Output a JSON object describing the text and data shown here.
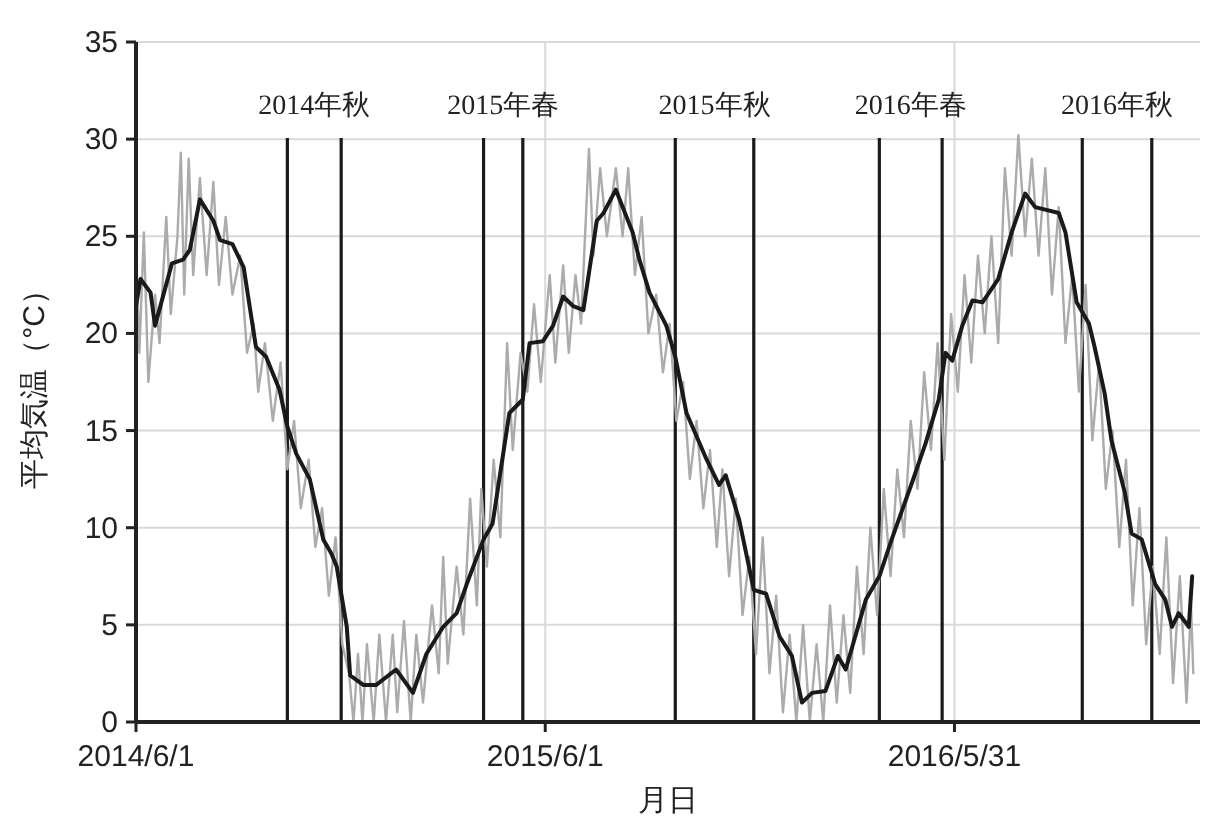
{
  "chart_data": {
    "type": "line",
    "xlabel": "月日",
    "ylabel": "平均気温（°C）",
    "xlim": [
      "2014-06-01",
      "2017-01-05"
    ],
    "xticks": [
      {
        "value": "2014-06-01",
        "label": "2014/6/1"
      },
      {
        "value": "2015-06-01",
        "label": "2015/6/1"
      },
      {
        "value": "2016-05-31",
        "label": "2016/5/31"
      }
    ],
    "ylim": [
      0,
      35
    ],
    "yticks": [
      0,
      5,
      10,
      15,
      20,
      25,
      30,
      35
    ],
    "grid": true,
    "marker": "none",
    "line_style": "solid",
    "ref_lines": [
      {
        "axis": "x",
        "value": "2014-10-14",
        "label": "2014年秋",
        "color": "#1a1a1a"
      },
      {
        "axis": "x",
        "value": "2014-12-01",
        "color": "#1a1a1a"
      },
      {
        "axis": "x",
        "value": "2015-04-07",
        "label": "2015年春",
        "color": "#1a1a1a"
      },
      {
        "axis": "x",
        "value": "2015-05-12",
        "color": "#1a1a1a"
      },
      {
        "axis": "x",
        "value": "2015-09-25",
        "label": "2015年秋",
        "color": "#1a1a1a"
      },
      {
        "axis": "x",
        "value": "2015-12-04",
        "color": "#1a1a1a"
      },
      {
        "axis": "x",
        "value": "2016-03-25",
        "label": "2016年春",
        "color": "#1a1a1a"
      },
      {
        "axis": "x",
        "value": "2016-05-20",
        "color": "#1a1a1a"
      },
      {
        "axis": "x",
        "value": "2016-09-22",
        "label": "2016年秋",
        "color": "#1a1a1a"
      },
      {
        "axis": "x",
        "value": "2016-11-23",
        "color": "#1a1a1a"
      }
    ],
    "series": [
      {
        "color": "#ababab",
        "x": [
          "2014-06-01",
          "2014-06-04",
          "2014-06-08",
          "2014-06-12",
          "2014-06-18",
          "2014-06-22",
          "2014-06-28",
          "2014-07-02",
          "2014-07-08",
          "2014-07-11",
          "2014-07-14",
          "2014-07-18",
          "2014-07-22",
          "2014-07-28",
          "2014-08-03",
          "2014-08-09",
          "2014-08-14",
          "2014-08-20",
          "2014-08-26",
          "2014-09-02",
          "2014-09-08",
          "2014-09-14",
          "2014-09-18",
          "2014-09-24",
          "2014-10-01",
          "2014-10-08",
          "2014-10-14",
          "2014-10-20",
          "2014-10-26",
          "2014-11-02",
          "2014-11-08",
          "2014-11-14",
          "2014-11-20",
          "2014-11-26",
          "2014-12-02",
          "2014-12-08",
          "2014-12-12",
          "2014-12-16",
          "2014-12-20",
          "2014-12-24",
          "2014-12-30",
          "2015-01-04",
          "2015-01-10",
          "2015-01-16",
          "2015-01-20",
          "2015-01-26",
          "2015-02-01",
          "2015-02-06",
          "2015-02-12",
          "2015-02-20",
          "2015-02-26",
          "2015-03-02",
          "2015-03-06",
          "2015-03-14",
          "2015-03-20",
          "2015-03-26",
          "2015-04-01",
          "2015-04-05",
          "2015-04-10",
          "2015-04-16",
          "2015-04-22",
          "2015-04-28",
          "2015-05-03",
          "2015-05-10",
          "2015-05-16",
          "2015-05-22",
          "2015-05-28",
          "2015-06-05",
          "2015-06-10",
          "2015-06-17",
          "2015-06-22",
          "2015-06-28",
          "2015-07-03",
          "2015-07-10",
          "2015-07-14",
          "2015-07-20",
          "2015-07-26",
          "2015-08-03",
          "2015-08-09",
          "2015-08-14",
          "2015-08-20",
          "2015-08-26",
          "2015-09-01",
          "2015-09-08",
          "2015-09-14",
          "2015-09-20",
          "2015-09-26",
          "2015-10-02",
          "2015-10-08",
          "2015-10-14",
          "2015-10-20",
          "2015-10-26",
          "2015-11-01",
          "2015-11-06",
          "2015-11-12",
          "2015-11-18",
          "2015-11-24",
          "2015-11-30",
          "2015-12-06",
          "2015-12-12",
          "2015-12-18",
          "2015-12-24",
          "2015-12-30",
          "2016-01-05",
          "2016-01-11",
          "2016-01-17",
          "2016-01-23",
          "2016-01-29",
          "2016-02-04",
          "2016-02-10",
          "2016-02-16",
          "2016-02-22",
          "2016-02-28",
          "2016-03-05",
          "2016-03-11",
          "2016-03-17",
          "2016-03-23",
          "2016-03-29",
          "2016-04-04",
          "2016-04-10",
          "2016-04-16",
          "2016-04-22",
          "2016-04-28",
          "2016-05-04",
          "2016-05-10",
          "2016-05-16",
          "2016-05-22",
          "2016-05-28",
          "2016-06-03",
          "2016-06-09",
          "2016-06-15",
          "2016-06-21",
          "2016-06-27",
          "2016-07-03",
          "2016-07-09",
          "2016-07-15",
          "2016-07-21",
          "2016-07-27",
          "2016-08-02",
          "2016-08-08",
          "2016-08-14",
          "2016-08-20",
          "2016-08-26",
          "2016-09-01",
          "2016-09-07",
          "2016-09-13",
          "2016-09-19",
          "2016-09-25",
          "2016-10-01",
          "2016-10-07",
          "2016-10-13",
          "2016-10-19",
          "2016-10-25",
          "2016-10-31",
          "2016-11-06",
          "2016-11-12",
          "2016-11-18",
          "2016-11-24",
          "2016-11-30",
          "2016-12-06",
          "2016-12-12",
          "2016-12-18",
          "2016-12-24",
          "2016-12-28",
          "2016-12-30"
        ],
        "values": [
          24.5,
          19.0,
          25.2,
          17.5,
          22,
          19.5,
          26,
          21,
          25,
          29.3,
          22,
          29,
          23,
          28,
          23,
          27.8,
          22.5,
          26,
          22,
          24,
          19,
          20.5,
          17,
          19.5,
          15.5,
          18.5,
          13,
          15.5,
          11,
          13.5,
          9,
          11,
          6.5,
          9.5,
          4,
          2.5,
          0,
          3.5,
          0,
          4,
          0,
          4.5,
          0,
          4.5,
          0.5,
          5.2,
          0,
          4.5,
          1,
          6,
          2.5,
          8.5,
          3,
          8,
          4.5,
          11.5,
          6,
          12,
          8,
          13.5,
          9.5,
          19.5,
          14,
          19,
          17,
          21.5,
          17.5,
          23,
          18.5,
          23.5,
          19,
          23,
          20.5,
          29.5,
          24,
          28.5,
          25,
          28.5,
          25,
          28.5,
          23,
          26,
          20,
          22,
          18,
          20.5,
          15.5,
          17.5,
          12.5,
          15.5,
          11,
          14,
          9,
          13,
          7.5,
          11.5,
          5.5,
          8.5,
          3.5,
          9.5,
          2.5,
          6.5,
          0.5,
          4.5,
          0,
          5,
          0,
          4,
          0,
          6,
          1,
          5.5,
          1.5,
          8,
          3.5,
          10,
          5.5,
          12,
          7.5,
          13,
          9.5,
          15.5,
          12,
          18,
          14,
          19.5,
          13.5,
          21,
          17,
          23,
          18.5,
          24,
          20,
          25,
          19.5,
          28.5,
          24,
          30.2,
          25,
          29,
          24,
          28.5,
          22,
          26.5,
          19.5,
          23,
          17,
          22.5,
          14.5,
          18.5,
          12,
          15,
          9,
          13.5,
          6,
          11,
          4,
          8,
          3.5,
          9.5,
          2,
          7.5,
          1,
          6,
          2.5
        ]
      },
      {
        "color": "#1a1a1a",
        "x": [
          "2014-06-01",
          "2014-06-05",
          "2014-06-14",
          "2014-06-18",
          "2014-06-26",
          "2014-07-03",
          "2014-07-13",
          "2014-07-19",
          "2014-07-28",
          "2014-08-09",
          "2014-08-15",
          "2014-08-26",
          "2014-09-05",
          "2014-09-16",
          "2014-09-25",
          "2014-10-07",
          "2014-10-14",
          "2014-10-22",
          "2014-11-03",
          "2014-11-15",
          "2014-11-22",
          "2014-11-27",
          "2014-12-06",
          "2014-12-09",
          "2014-12-21",
          "2015-01-01",
          "2015-01-19",
          "2015-02-03",
          "2015-02-15",
          "2015-03-02",
          "2015-03-14",
          "2015-03-23",
          "2015-04-07",
          "2015-04-15",
          "2015-04-30",
          "2015-05-12",
          "2015-05-18",
          "2015-05-30",
          "2015-06-08",
          "2015-06-17",
          "2015-06-26",
          "2015-07-05",
          "2015-07-17",
          "2015-07-23",
          "2015-08-03",
          "2015-08-18",
          "2015-08-24",
          "2015-09-02",
          "2015-09-17",
          "2015-09-25",
          "2015-10-05",
          "2015-10-23",
          "2015-11-03",
          "2015-11-09",
          "2015-11-21",
          "2015-12-04",
          "2015-12-15",
          "2015-12-27",
          "2016-01-07",
          "2016-01-16",
          "2016-01-25",
          "2016-02-06",
          "2016-02-17",
          "2016-02-24",
          "2016-03-13",
          "2016-03-25",
          "2016-04-05",
          "2016-04-23",
          "2016-05-05",
          "2016-05-17",
          "2016-05-23",
          "2016-05-29",
          "2016-06-07",
          "2016-06-16",
          "2016-06-25",
          "2016-07-09",
          "2016-07-21",
          "2016-08-02",
          "2016-08-11",
          "2016-09-01",
          "2016-09-07",
          "2016-09-17",
          "2016-09-28",
          "2016-10-03",
          "2016-10-12",
          "2016-10-18",
          "2016-10-30",
          "2016-11-05",
          "2016-11-14",
          "2016-11-26",
          "2016-12-05",
          "2016-12-11",
          "2016-12-17",
          "2016-12-26",
          "2016-12-29"
        ],
        "values": [
          21.4,
          22.8,
          22.1,
          20.4,
          22.1,
          23.6,
          23.8,
          24.3,
          26.9,
          25.8,
          24.8,
          24.6,
          23.4,
          19.3,
          18.8,
          17.1,
          15.2,
          13.8,
          12.5,
          9.4,
          8.7,
          8.0,
          4.9,
          2.4,
          1.9,
          1.9,
          2.7,
          1.5,
          3.5,
          4.9,
          5.6,
          7.1,
          9.4,
          10.2,
          15.9,
          16.6,
          19.5,
          19.6,
          20.4,
          21.9,
          21.4,
          21.2,
          25.8,
          26.2,
          27.4,
          25.2,
          23.8,
          22.1,
          20.4,
          18.8,
          15.9,
          13.5,
          12.2,
          12.7,
          10.4,
          6.8,
          6.6,
          4.4,
          3.4,
          1.0,
          1.5,
          1.6,
          3.4,
          2.7,
          6.3,
          7.5,
          9.4,
          12.3,
          14.3,
          16.6,
          19.0,
          18.6,
          20.4,
          21.7,
          21.6,
          22.8,
          25.2,
          27.2,
          26.5,
          26.2,
          25.2,
          21.6,
          20.5,
          19.3,
          16.9,
          14.5,
          11.8,
          9.7,
          9.4,
          7.1,
          6.3,
          4.9,
          5.6,
          4.9,
          7.5
        ]
      }
    ]
  }
}
